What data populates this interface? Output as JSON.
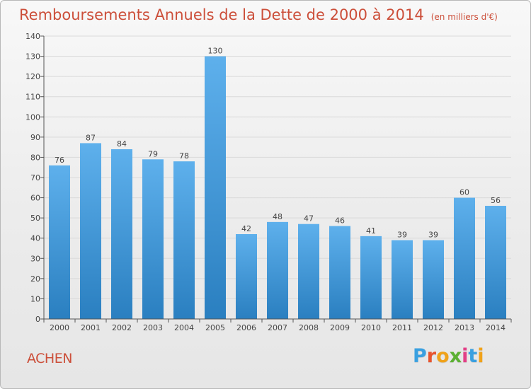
{
  "header": {
    "title": "Remboursements Annuels de la Dette de 2000 à 2014",
    "unit": "(en milliers d'€)"
  },
  "commune": "ACHEN",
  "logo": {
    "text": "Proxiti",
    "colors": [
      "#3aa0e0",
      "#e8542e",
      "#f0a21a",
      "#5bb032",
      "#e23f86",
      "#3aa0e0",
      "#f0a21a"
    ]
  },
  "colors": {
    "bar_top": "#5eb0ec",
    "bar_bottom": "#2a7fc0",
    "title": "#cc4f3a",
    "axis": "#555555"
  },
  "chart_data": {
    "type": "bar",
    "title": "Remboursements Annuels de la Dette de 2000 à 2014",
    "subtitle": "(en milliers d'€)",
    "categories": [
      "2000",
      "2001",
      "2002",
      "2003",
      "2004",
      "2005",
      "2006",
      "2007",
      "2008",
      "2009",
      "2010",
      "2011",
      "2012",
      "2013",
      "2014"
    ],
    "values": [
      76,
      87,
      84,
      79,
      78,
      130,
      42,
      48,
      47,
      46,
      41,
      39,
      39,
      60,
      56
    ],
    "ylim": [
      0,
      140
    ],
    "yticks": [
      0,
      10,
      20,
      30,
      40,
      50,
      60,
      70,
      80,
      90,
      100,
      110,
      120,
      130,
      140
    ],
    "grid": true,
    "data_labels": true,
    "legend": "none"
  }
}
